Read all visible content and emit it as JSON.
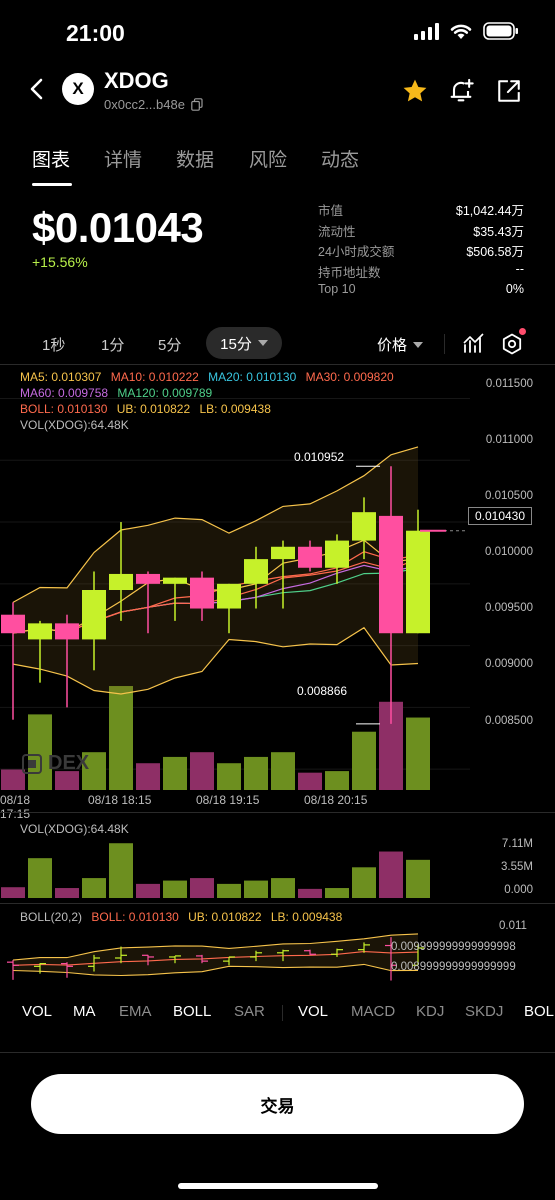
{
  "status_bar": {
    "time": "21:00"
  },
  "header": {
    "token_name": "XDOG",
    "token_address": "0x0cc2...b48e",
    "logo_glyph": "X"
  },
  "tabs": [
    {
      "label": "图表",
      "active": true
    },
    {
      "label": "详情",
      "active": false
    },
    {
      "label": "数据",
      "active": false
    },
    {
      "label": "风险",
      "active": false
    },
    {
      "label": "动态",
      "active": false
    }
  ],
  "price": {
    "value": "$0.01043",
    "change": "+15.56%"
  },
  "stats": [
    {
      "key": "市值",
      "value": "$1,042.44万"
    },
    {
      "key": "流动性",
      "value": "$35.43万"
    },
    {
      "key": "24小时成交额",
      "value": "$506.58万"
    },
    {
      "key": "持币地址数",
      "value": "--"
    },
    {
      "key": "Top 10",
      "value": "0%"
    }
  ],
  "intervals": {
    "i1": "1秒",
    "i2": "1分",
    "i3": "5分",
    "active": "15分",
    "price_mode": "价格"
  },
  "legend": {
    "ma5": "MA5: 0.010307",
    "ma10": "MA10: 0.010222",
    "ma20": "MA20: 0.010130",
    "ma30": "MA30: 0.009820",
    "ma60": "MA60: 0.009758",
    "ma120": "MA120: 0.009789",
    "boll": "BOLL: 0.010130",
    "ub": "UB: 0.010822",
    "lb": "LB: 0.009438",
    "vol": "VOL(XDOG):64.48K"
  },
  "colors": {
    "up": "#c6f12a",
    "down": "#ff4fa0",
    "ma5": "#f6c34b",
    "ma10": "#ff6a4d",
    "ma20": "#39c6e0",
    "ma30": "#ff6a4d",
    "ma60": "#c56be0",
    "ma120": "#4fd08a",
    "boll": "#ff6a4d",
    "ub": "#f6c34b",
    "lb": "#f6c34b"
  },
  "main_axis": [
    "0.011500",
    "0.011000",
    "0.010500",
    "0.010000",
    "0.009500",
    "0.009000",
    "0.008500"
  ],
  "price_tag": "0.010430",
  "high_label": "0.010952",
  "low_label": "0.008866",
  "watermark": "DEX",
  "time_axis": [
    "08/18 17:15",
    "08/18 18:15",
    "08/18 19:15",
    "08/18 20:15"
  ],
  "vol_panel": {
    "title": "VOL(XDOG):64.48K",
    "axis": [
      "7.11M",
      "3.55M",
      "0.000"
    ]
  },
  "boll_panel": {
    "title": "BOLL(20,2)",
    "boll": "BOLL: 0.010130",
    "ub": "UB: 0.010822",
    "lb": "LB: 0.009438",
    "axis": [
      "0.011",
      "0.009999999999999998",
      "0.008999999999999999"
    ]
  },
  "indicators": [
    "VOL",
    "MA",
    "EMA",
    "BOLL",
    "SAR",
    "VOL",
    "MACD",
    "KDJ",
    "SKDJ",
    "BOLL"
  ],
  "trade_button": "交易",
  "chart_data": {
    "type": "candlestick",
    "candles": [
      {
        "o": 0.00975,
        "h": 0.00985,
        "l": 0.0089,
        "c": 0.0096
      },
      {
        "o": 0.00955,
        "h": 0.0097,
        "l": 0.0092,
        "c": 0.00968
      },
      {
        "o": 0.00968,
        "h": 0.00975,
        "l": 0.009,
        "c": 0.00955
      },
      {
        "o": 0.00955,
        "h": 0.0101,
        "l": 0.0093,
        "c": 0.00995
      },
      {
        "o": 0.00995,
        "h": 0.0105,
        "l": 0.0097,
        "c": 0.01008
      },
      {
        "o": 0.01008,
        "h": 0.0101,
        "l": 0.0096,
        "c": 0.01
      },
      {
        "o": 0.01,
        "h": 0.01005,
        "l": 0.0097,
        "c": 0.01005
      },
      {
        "o": 0.01005,
        "h": 0.0101,
        "l": 0.0097,
        "c": 0.0098
      },
      {
        "o": 0.0098,
        "h": 0.01,
        "l": 0.0096,
        "c": 0.01
      },
      {
        "o": 0.01,
        "h": 0.0103,
        "l": 0.0098,
        "c": 0.0102
      },
      {
        "o": 0.0102,
        "h": 0.01035,
        "l": 0.0098,
        "c": 0.0103
      },
      {
        "o": 0.0103,
        "h": 0.01035,
        "l": 0.0101,
        "c": 0.01013
      },
      {
        "o": 0.01013,
        "h": 0.0104,
        "l": 0.01,
        "c": 0.01035
      },
      {
        "o": 0.01035,
        "h": 0.0107,
        "l": 0.0102,
        "c": 0.01058
      },
      {
        "o": 0.01055,
        "h": 0.010952,
        "l": 0.008866,
        "c": 0.0096
      },
      {
        "o": 0.0096,
        "h": 0.0106,
        "l": 0.0096,
        "c": 0.01043
      }
    ],
    "volumes_m": [
      1.3,
      4.8,
      1.2,
      2.4,
      6.6,
      1.7,
      2.1,
      2.4,
      1.7,
      2.1,
      2.4,
      1.1,
      1.2,
      3.7,
      5.6,
      4.6
    ],
    "price_range": [
      0.00825,
      0.01165
    ],
    "volume_range_m": [
      0,
      7.11
    ]
  }
}
